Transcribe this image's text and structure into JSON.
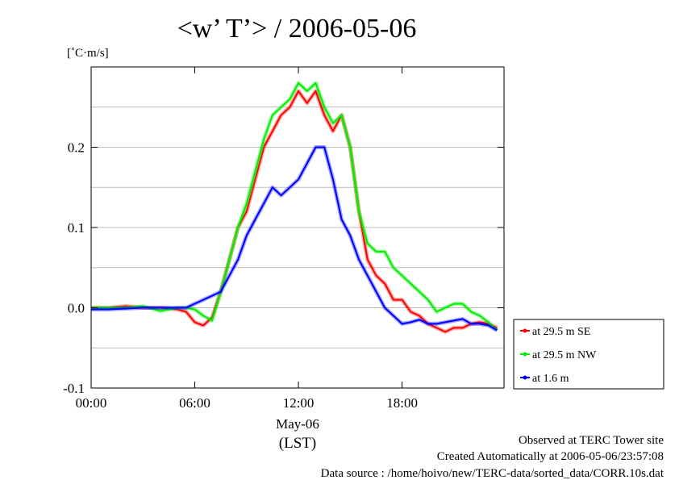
{
  "chart_data": {
    "type": "line",
    "title": "<w’ T’> / 2006-05-06",
    "ylabel": "[˚C·m/s]",
    "date_label": "May-06",
    "xlabel": "(LST)",
    "xlim": [
      0,
      23.9
    ],
    "ylim": [
      -0.1,
      0.3
    ],
    "grid": true,
    "legend_position": "bottom-right, outside plot",
    "x_ticks": [
      {
        "value": 0,
        "label": "00:00"
      },
      {
        "value": 6,
        "label": "06:00"
      },
      {
        "value": 12,
        "label": "12:00"
      },
      {
        "value": 18,
        "label": "18:00"
      }
    ],
    "y_ticks": [
      {
        "value": -0.1,
        "label": "-0.1"
      },
      {
        "value": 0.0,
        "label": "0.0"
      },
      {
        "value": 0.1,
        "label": "0.1"
      },
      {
        "value": 0.2,
        "label": "0.2"
      }
    ],
    "x": [
      0,
      1,
      2,
      3,
      4,
      5,
      5.5,
      6,
      6.5,
      7,
      7.5,
      8,
      8.5,
      9,
      9.5,
      10,
      10.5,
      11,
      11.5,
      12,
      12.5,
      13,
      13.5,
      14,
      14.5,
      15,
      15.5,
      16,
      16.5,
      17,
      17.5,
      18,
      18.5,
      19,
      19.5,
      20,
      20.5,
      21,
      21.5,
      22,
      22.5,
      23,
      23.5
    ],
    "series": [
      {
        "name": "at 29.5 m SE",
        "color": "#ff0000",
        "values": [
          0.0,
          0.0,
          0.002,
          0.0,
          0.0,
          -0.002,
          -0.005,
          -0.018,
          -0.022,
          -0.012,
          0.02,
          0.06,
          0.1,
          0.12,
          0.16,
          0.2,
          0.22,
          0.24,
          0.25,
          0.27,
          0.255,
          0.27,
          0.24,
          0.22,
          0.24,
          0.2,
          0.12,
          0.06,
          0.04,
          0.03,
          0.01,
          0.01,
          -0.005,
          -0.01,
          -0.02,
          -0.025,
          -0.03,
          -0.025,
          -0.025,
          -0.02,
          -0.018,
          -0.02,
          -0.025
        ]
      },
      {
        "name": "at 29.5 m NW",
        "color": "#00ee00",
        "values": [
          0.0,
          0.0,
          0.0,
          0.002,
          -0.004,
          0.0,
          0.0,
          -0.002,
          -0.01,
          -0.016,
          0.02,
          0.06,
          0.1,
          0.13,
          0.17,
          0.21,
          0.24,
          0.25,
          0.26,
          0.28,
          0.27,
          0.28,
          0.25,
          0.23,
          0.24,
          0.2,
          0.12,
          0.08,
          0.07,
          0.07,
          0.05,
          0.04,
          0.03,
          0.02,
          0.01,
          -0.005,
          0.0,
          0.005,
          0.005,
          -0.005,
          -0.01,
          -0.018,
          -0.028
        ]
      },
      {
        "name": "at 1.6 m",
        "color": "#0000ff",
        "values": [
          -0.002,
          -0.002,
          -0.001,
          0.0,
          0.0,
          0.0,
          0.0,
          0.005,
          0.01,
          0.015,
          0.02,
          0.04,
          0.06,
          0.09,
          0.11,
          0.13,
          0.15,
          0.14,
          0.15,
          0.16,
          0.18,
          0.2,
          0.2,
          0.16,
          0.11,
          0.09,
          0.06,
          0.04,
          0.02,
          0.0,
          -0.01,
          -0.02,
          -0.018,
          -0.015,
          -0.02,
          -0.02,
          -0.018,
          -0.016,
          -0.014,
          -0.02,
          -0.02,
          -0.022,
          -0.028
        ]
      }
    ]
  },
  "footer": {
    "line1": "Observed at TERC Tower site",
    "line2": "Created Automatically at 2006-05-06/23:57:08",
    "line3": "Data source : /home/hoivo/new/TERC-data/sorted_data/CORR.10s.dat"
  }
}
